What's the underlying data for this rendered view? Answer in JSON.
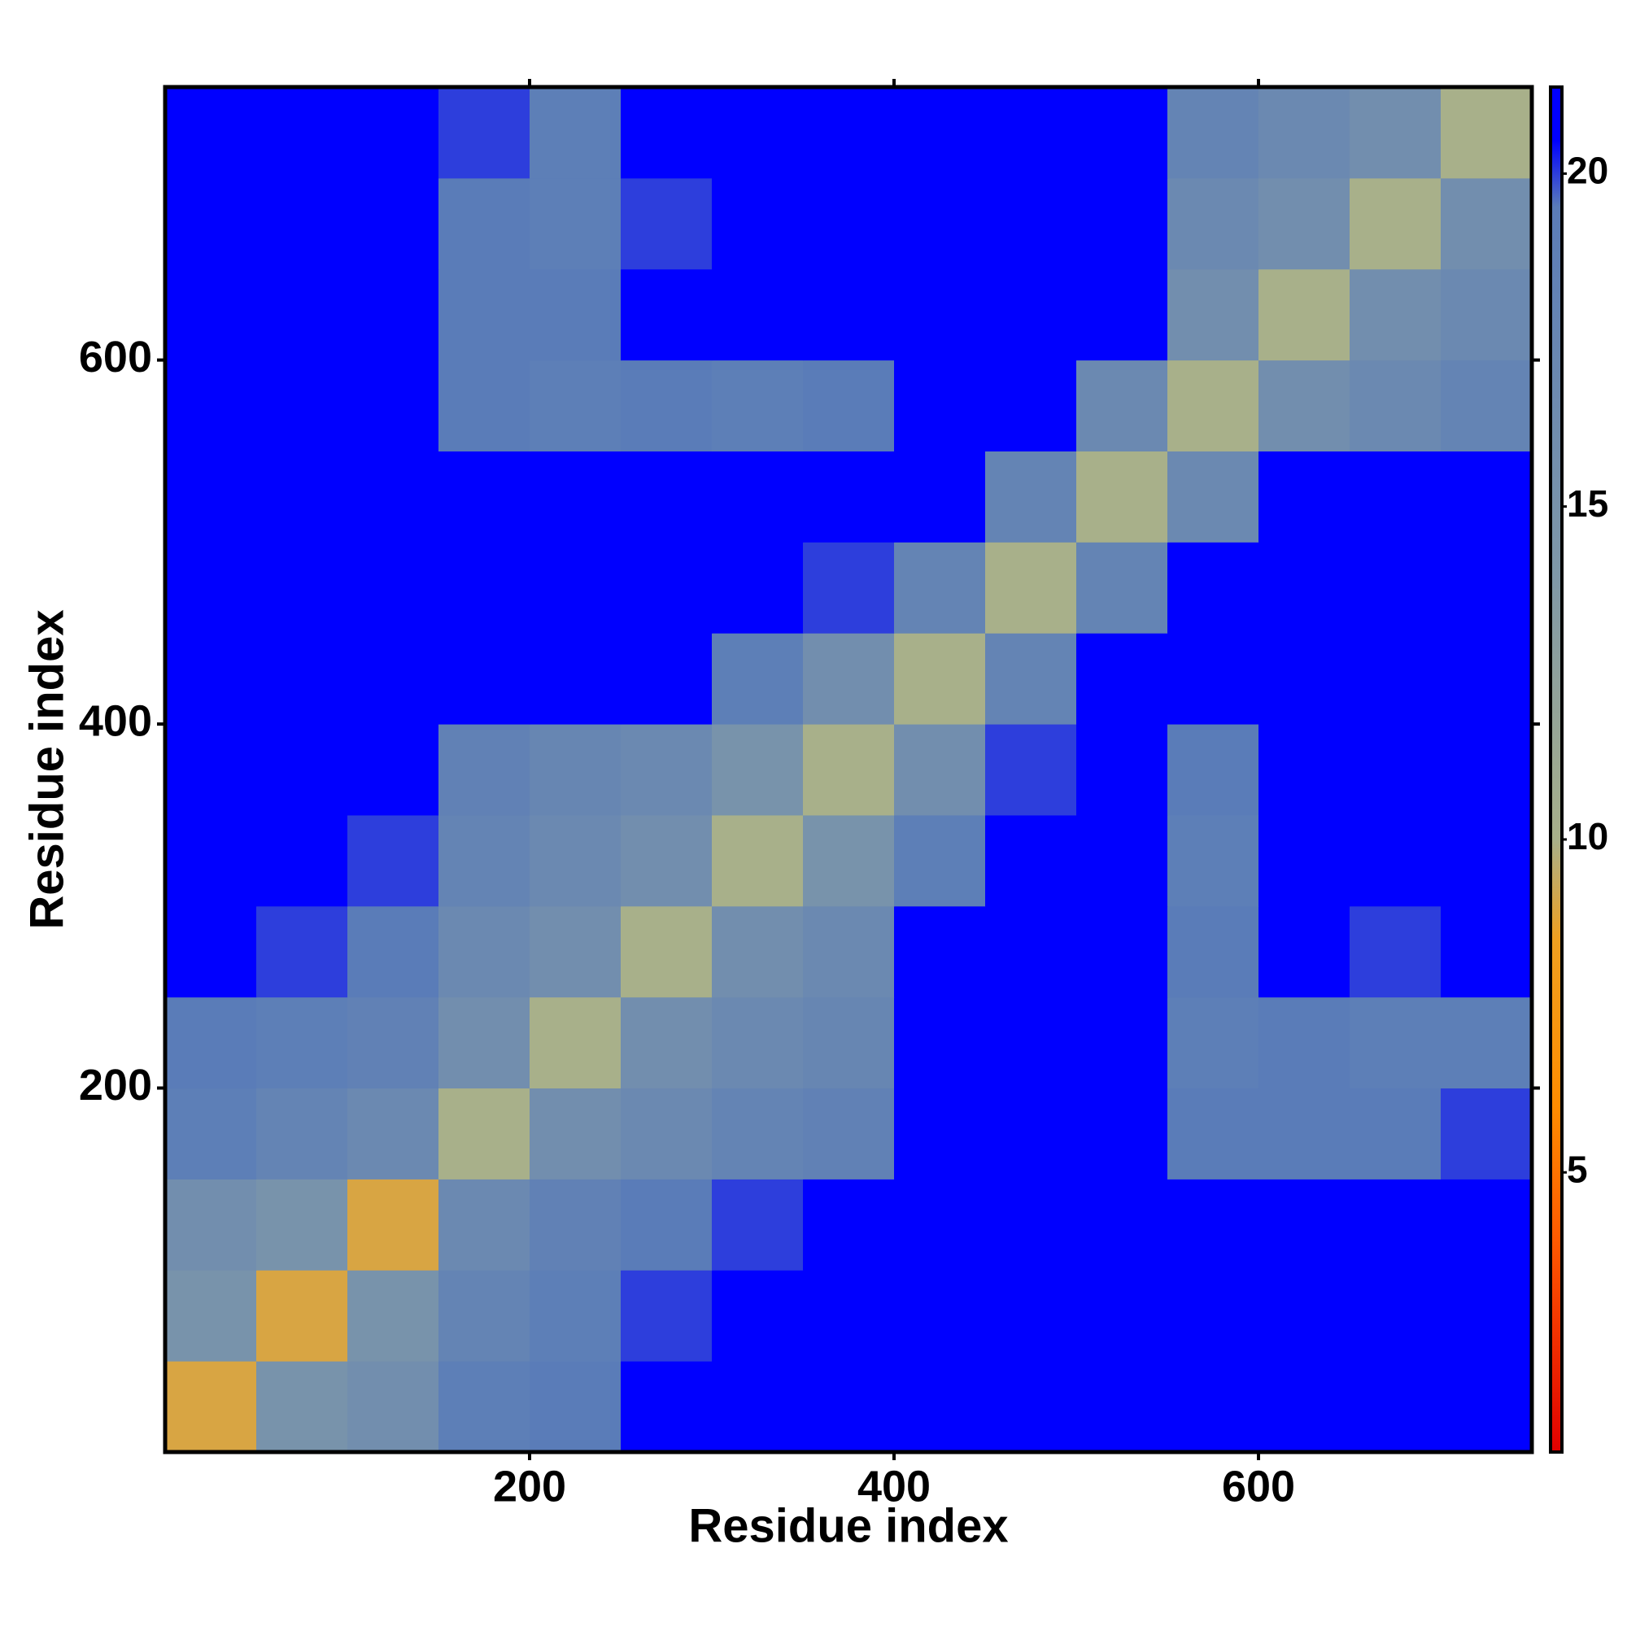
{
  "chart_data": {
    "type": "heatmap",
    "xlabel": "Residue index",
    "ylabel": "Residue index",
    "xlim": [
      0,
      750
    ],
    "ylim": [
      0,
      750
    ],
    "xticks": [
      200,
      400,
      600
    ],
    "yticks": [
      200,
      400,
      600
    ],
    "bins": [
      0,
      50,
      100,
      150,
      200,
      250,
      300,
      350,
      400,
      450,
      500,
      550,
      600,
      650,
      700,
      750
    ],
    "z": [
      [
        9,
        15,
        16,
        19,
        19.5,
        20.5,
        21,
        21,
        21,
        21,
        21,
        21,
        21,
        21,
        21
      ],
      [
        15,
        9,
        15,
        18,
        19,
        20,
        21,
        21,
        21,
        21,
        21,
        21,
        21,
        21,
        21
      ],
      [
        16,
        15,
        9,
        17,
        18.5,
        19.5,
        20,
        21,
        21,
        21,
        21,
        21,
        21,
        21,
        21
      ],
      [
        19,
        18,
        17,
        10,
        16,
        17,
        18,
        18.5,
        21,
        21,
        21,
        19.5,
        19.5,
        19.5,
        20
      ],
      [
        19.5,
        19,
        18.5,
        16,
        10,
        16,
        17,
        17.5,
        20.5,
        21,
        21,
        19,
        19.5,
        19,
        19
      ],
      [
        20.5,
        20,
        19.5,
        17,
        16,
        10,
        16,
        17,
        20.5,
        21,
        21,
        19.5,
        21,
        20,
        20.5
      ],
      [
        21,
        21,
        20,
        18,
        17,
        16,
        10,
        15,
        19,
        20.5,
        21,
        19,
        21,
        21,
        21
      ],
      [
        21,
        21,
        21,
        18.5,
        17.5,
        17,
        15,
        10,
        16,
        20,
        21,
        19.5,
        21,
        21,
        21
      ],
      [
        21,
        21,
        21,
        21,
        20.5,
        20.5,
        19,
        16,
        10,
        18,
        21,
        21,
        21,
        21,
        21
      ],
      [
        21,
        21,
        21,
        21,
        21,
        21,
        20.5,
        20,
        18,
        10,
        18,
        21,
        21,
        21,
        21
      ],
      [
        21,
        21,
        21,
        21,
        21,
        21,
        21,
        21,
        21,
        18,
        10,
        17,
        21,
        21,
        21
      ],
      [
        21,
        21,
        21,
        19.5,
        19,
        19.5,
        19,
        19.5,
        21,
        21,
        17,
        10,
        16,
        17,
        18
      ],
      [
        21,
        21,
        21,
        19.5,
        19.5,
        21,
        21,
        21,
        21,
        21,
        21,
        16,
        10,
        16,
        17
      ],
      [
        21,
        21,
        21,
        19.5,
        19,
        20,
        21,
        21,
        21,
        21,
        21,
        17,
        16,
        10,
        16
      ],
      [
        21,
        21,
        21,
        20,
        19,
        20.5,
        21,
        21,
        21,
        21,
        21,
        18,
        17,
        16,
        10
      ]
    ],
    "clim": [
      0.8,
      21.3
    ],
    "cticks": [
      5,
      10,
      15,
      20
    ],
    "colorscale": [
      [
        0.8,
        "#e00000"
      ],
      [
        4,
        "#ff5a00"
      ],
      [
        6,
        "#ff8c00"
      ],
      [
        8.5,
        "#f0a020"
      ],
      [
        10,
        "#a8b08a"
      ],
      [
        14,
        "#7f98a8"
      ],
      [
        19.5,
        "#5a7cb8"
      ],
      [
        20.5,
        "#0000ff"
      ],
      [
        21.3,
        "#0000ff"
      ]
    ]
  }
}
